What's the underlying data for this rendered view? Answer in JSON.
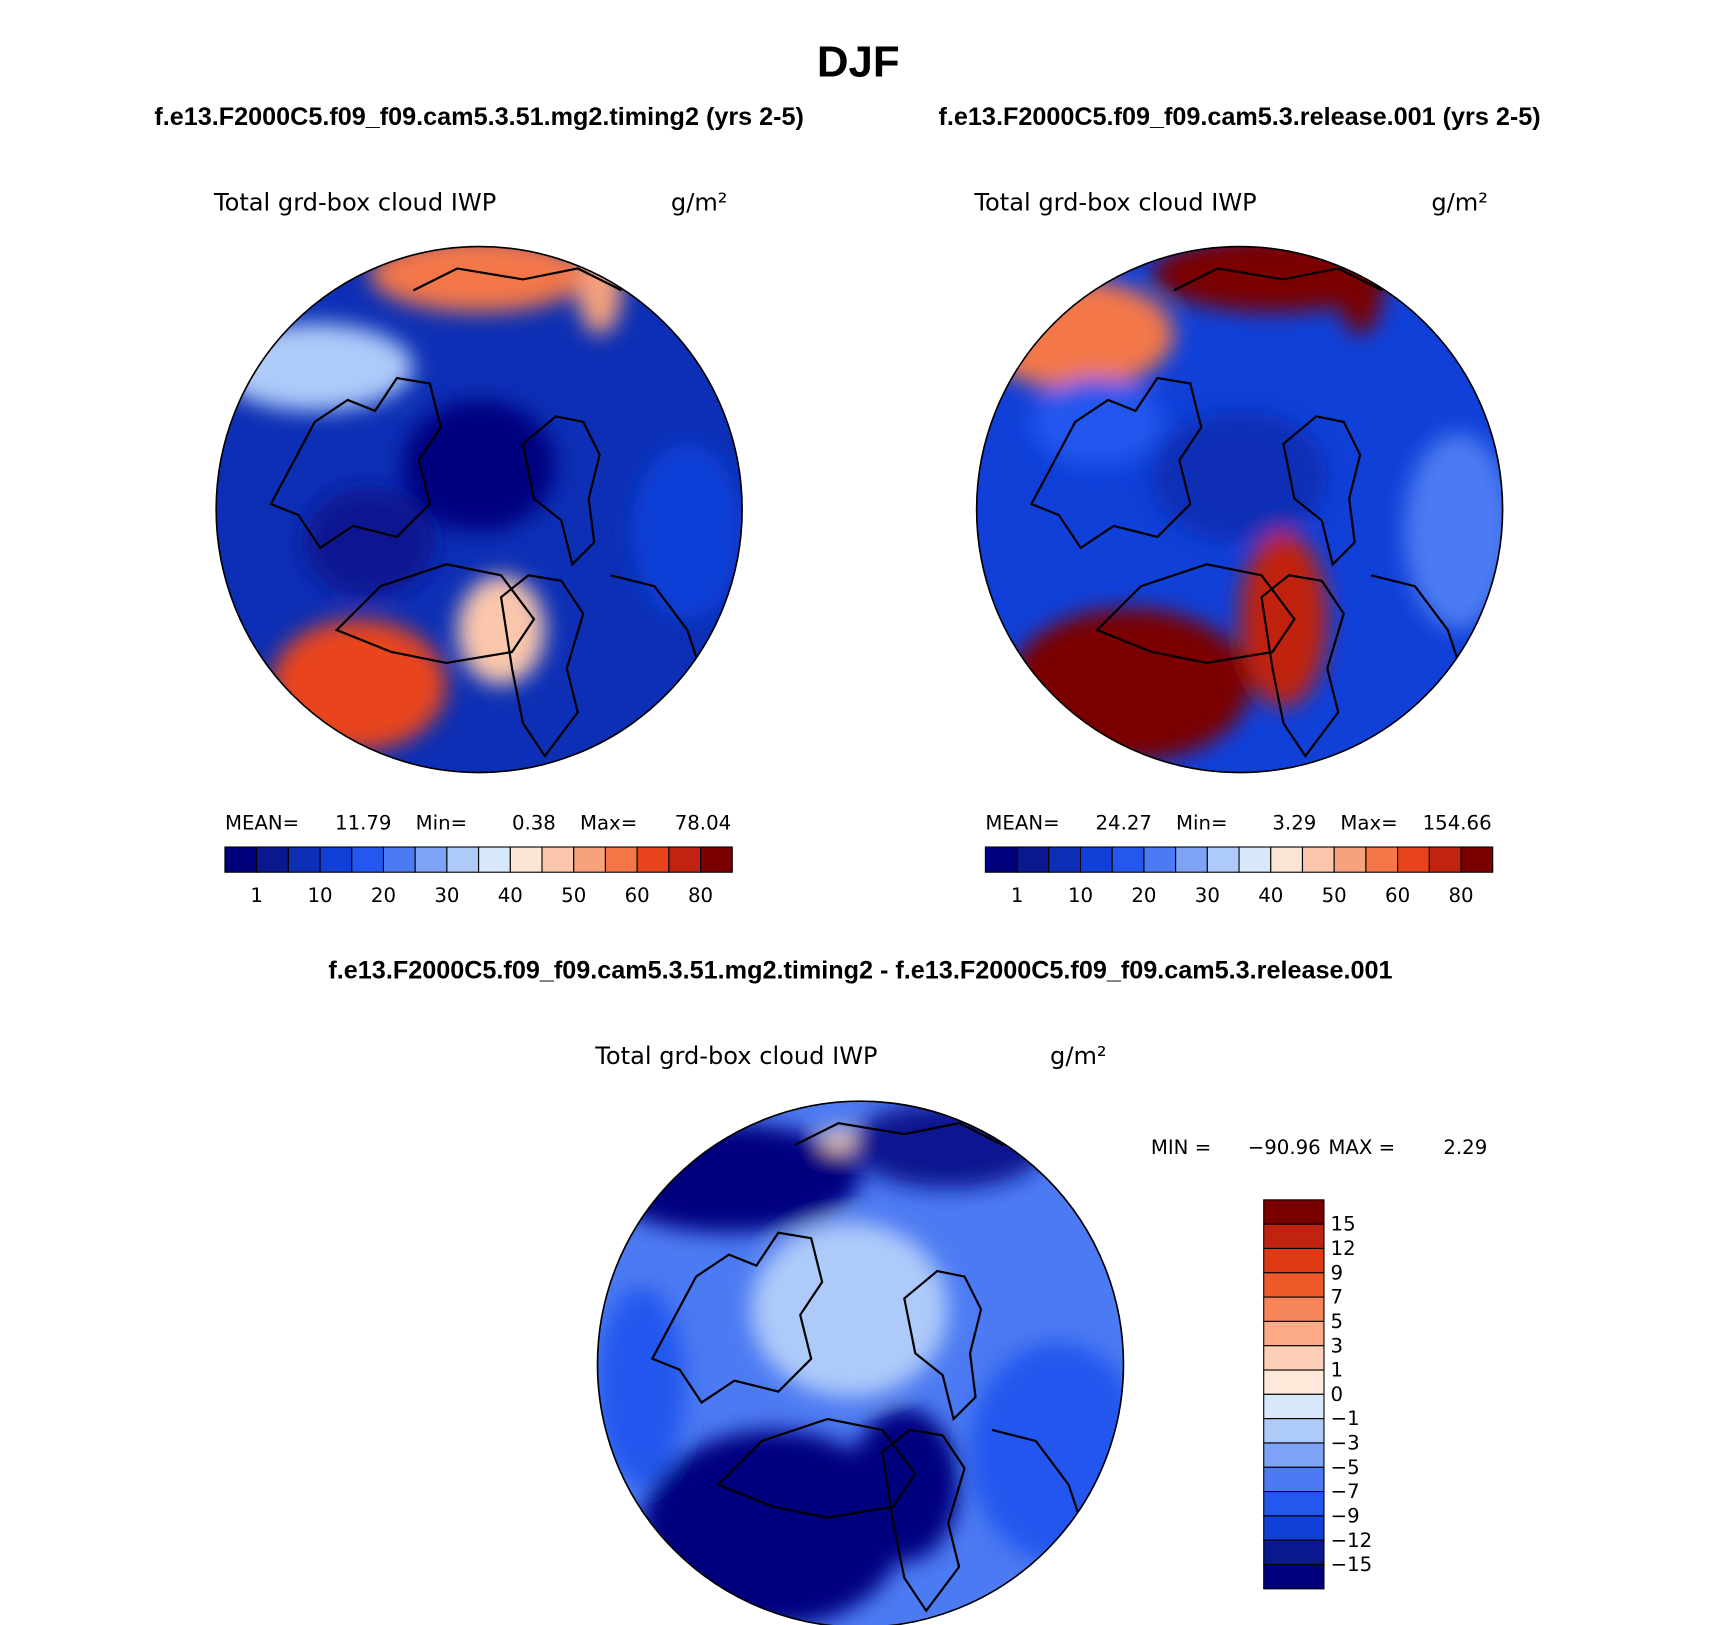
{
  "title": "DJF",
  "panels": [
    {
      "case": "f.e13.F2000C5.f09_f09.cam5.3.51.mg2.timing2 (yrs 2-5)",
      "variable": "Total grd-box cloud IWP",
      "units": "g/m²",
      "stats": {
        "mean_label": "MEAN=",
        "mean": 11.79,
        "min_label": "Min=",
        "min": 0.38,
        "max_label": "Max=",
        "max": 78.04
      },
      "colorbar": {
        "labels": [
          "1",
          "10",
          "20",
          "30",
          "40",
          "50",
          "60",
          "80"
        ],
        "colors": [
          "#00007f",
          "#0a1890",
          "#0c2fb5",
          "#1040d8",
          "#2457ee",
          "#4c7af2",
          "#7ea3f6",
          "#aecaf9",
          "#d8e8fb",
          "#fde5d5",
          "#fbc7ac",
          "#f7a27c",
          "#f37748",
          "#e8441c",
          "#c02410",
          "#7a0000"
        ]
      }
    },
    {
      "case": "f.e13.F2000C5.f09_f09.cam5.3.release.001 (yrs 2-5)",
      "variable": "Total grd-box cloud IWP",
      "units": "g/m²",
      "stats": {
        "mean_label": "MEAN=",
        "mean": 24.27,
        "min_label": "Min=",
        "min": 3.29,
        "max_label": "Max=",
        "max": 154.66
      },
      "colorbar": {
        "labels": [
          "1",
          "10",
          "20",
          "30",
          "40",
          "50",
          "60",
          "80"
        ],
        "colors": [
          "#00007f",
          "#0a1890",
          "#0c2fb5",
          "#1040d8",
          "#2457ee",
          "#4c7af2",
          "#7ea3f6",
          "#aecaf9",
          "#d8e8fb",
          "#fde5d5",
          "#fbc7ac",
          "#f7a27c",
          "#f37748",
          "#e8441c",
          "#c02410",
          "#7a0000"
        ]
      }
    }
  ],
  "difference": {
    "case": "f.e13.F2000C5.f09_f09.cam5.3.51.mg2.timing2 - f.e13.F2000C5.f09_f09.cam5.3.release.001",
    "variable": "Total grd-box cloud IWP",
    "units": "g/m²",
    "stats": {
      "min_label": "MIN =",
      "min": "−90.96",
      "max_label": "MAX =",
      "max": 2.29
    },
    "colorbar": {
      "labels": [
        "15",
        "12",
        "9",
        "7",
        "5",
        "3",
        "1",
        "0",
        "−1",
        "−3",
        "−5",
        "−7",
        "−9",
        "−12",
        "−15"
      ],
      "colors": [
        "#7a0000",
        "#c02410",
        "#e03a14",
        "#f05a2a",
        "#f7855a",
        "#fbab88",
        "#fccfb6",
        "#fde8da",
        "#d8e8fb",
        "#aecaf9",
        "#7ea3f6",
        "#4c7af2",
        "#2457ee",
        "#1040d8",
        "#0a1890",
        "#00007f"
      ]
    }
  }
}
